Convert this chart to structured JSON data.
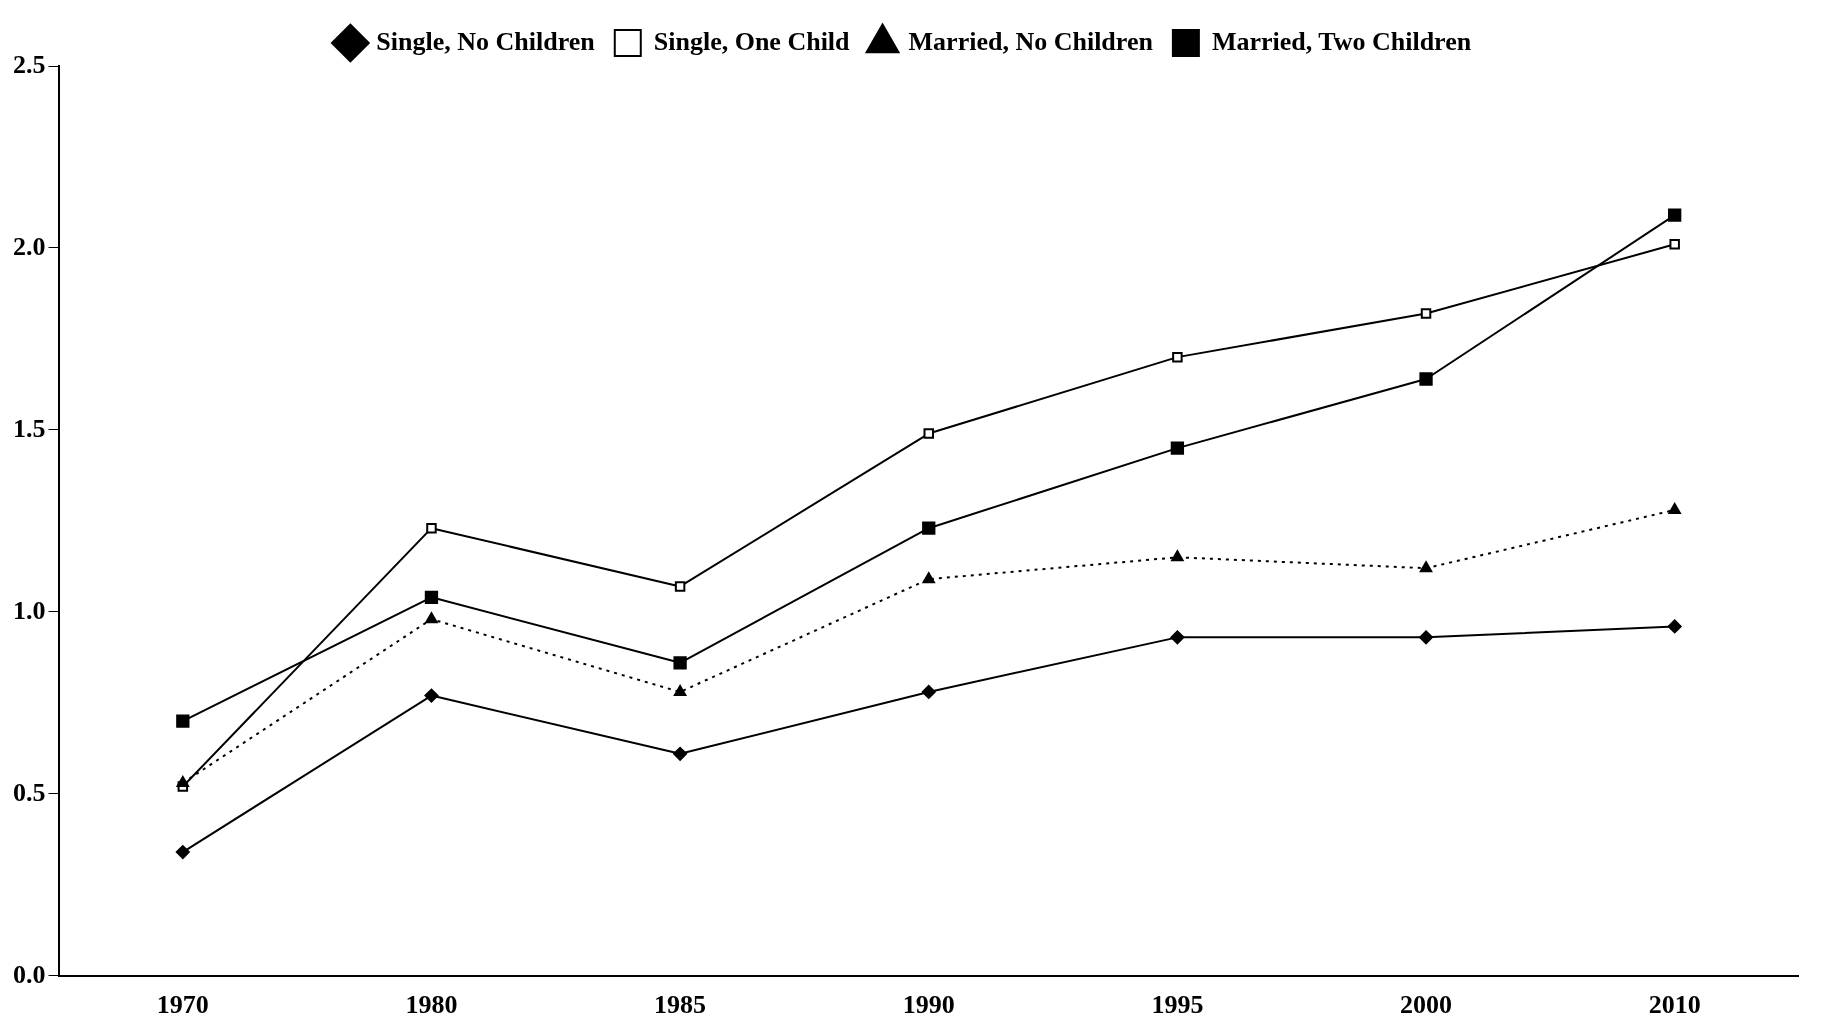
{
  "chart_data": {
    "type": "line",
    "categories": [
      "1970",
      "1980",
      "1985",
      "1990",
      "1995",
      "2000",
      "2010"
    ],
    "ylim": [
      0,
      2.5
    ],
    "yticks": [
      {
        "value": 0,
        "label": "0.0"
      },
      {
        "value": 0.5,
        "label": "0.5"
      },
      {
        "value": 1,
        "label": "1.0"
      },
      {
        "value": 1.5,
        "label": "1.5"
      },
      {
        "value": 2,
        "label": "2.0"
      },
      {
        "value": 2.5,
        "label": "2.5"
      }
    ],
    "grid": false,
    "legend": "top",
    "series": [
      {
        "name": "Single, No Children",
        "color": "#000000",
        "marker": "diamond",
        "line_style": "solid",
        "values": [
          0.34,
          0.77,
          0.61,
          0.78,
          0.93,
          0.93,
          0.96
        ]
      },
      {
        "name": "Single, One Child",
        "color": "#000000",
        "marker": "square",
        "line_style": "solid",
        "values": [
          0.52,
          1.23,
          1.07,
          1.49,
          1.7,
          1.82,
          2.01
        ]
      },
      {
        "name": "Married, No Children",
        "color": "#000000",
        "marker": "triangle",
        "line_style": "dotted",
        "values": [
          0.53,
          0.98,
          0.78,
          1.09,
          1.15,
          1.12,
          1.28
        ]
      },
      {
        "name": "Married, Two Children",
        "color": "#000000",
        "marker": "square",
        "line_style": "solid",
        "values": [
          0.7,
          1.04,
          0.86,
          1.23,
          1.45,
          1.64,
          2.09
        ]
      }
    ]
  }
}
